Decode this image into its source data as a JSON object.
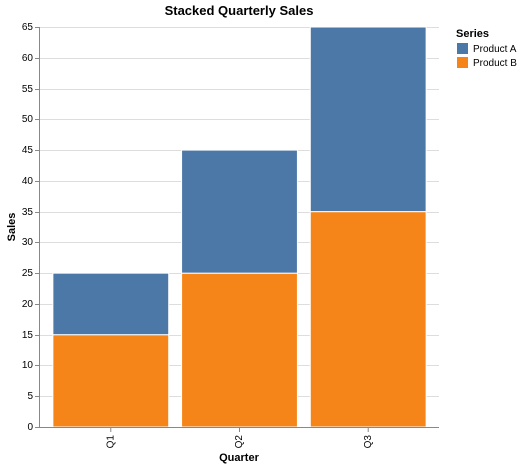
{
  "chart_data": {
    "type": "bar",
    "stacked": true,
    "title": "Stacked Quarterly Sales",
    "xlabel": "Quarter",
    "ylabel": "Sales",
    "categories": [
      "Q1",
      "Q2",
      "Q3"
    ],
    "series": [
      {
        "name": "Product B",
        "values": [
          15,
          25,
          35
        ],
        "color": "#f58518"
      },
      {
        "name": "Product A",
        "values": [
          10,
          20,
          30
        ],
        "color": "#4c78a8"
      }
    ],
    "ylim": [
      0,
      65
    ],
    "yticks": [
      0,
      5,
      10,
      15,
      20,
      25,
      30,
      35,
      40,
      45,
      50,
      55,
      60,
      65
    ],
    "grid": true,
    "legend": {
      "title": "Series",
      "placement": "right",
      "entries": [
        {
          "label": "Product A",
          "color": "#4c78a8"
        },
        {
          "label": "Product B",
          "color": "#f58518"
        }
      ]
    }
  }
}
